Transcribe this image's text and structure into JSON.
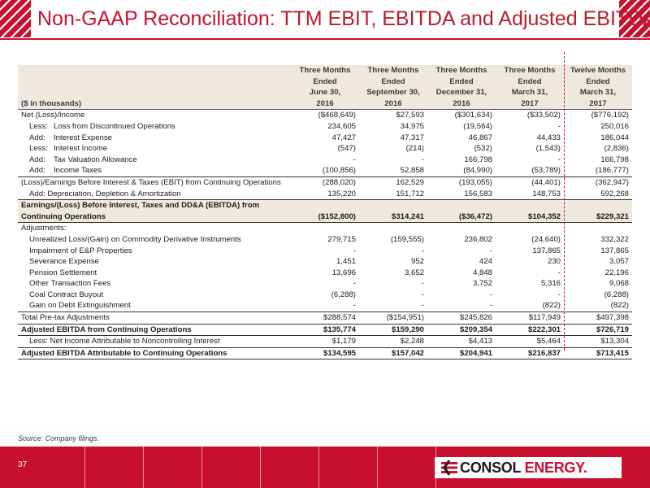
{
  "title": {
    "main": "Non-GAAP Reconciliation:",
    "sub": "TTM EBIT, EBITDA and Adjusted EBITDA"
  },
  "header": {
    "units_label": "($ in thousands)",
    "columns": [
      {
        "l1": "Three Months",
        "l2": "Ended",
        "l3": "June 30,",
        "year": "2016"
      },
      {
        "l1": "Three Months",
        "l2": "Ended",
        "l3": "September 30,",
        "year": "2016"
      },
      {
        "l1": "Three Months",
        "l2": "Ended",
        "l3": "December 31,",
        "year": "2016"
      },
      {
        "l1": "Three Months",
        "l2": "Ended",
        "l3": "March 31,",
        "year": "2017"
      },
      {
        "l1": "Twelve Months",
        "l2": "Ended",
        "l3": "March 31,",
        "year": "2017"
      }
    ]
  },
  "rows": [
    {
      "prefix": "",
      "label": "Net (Loss)/Income",
      "v": [
        "($468,649)",
        "$27,593",
        "($301,634)",
        "($33,502)",
        "($776,192)"
      ]
    },
    {
      "prefix": "Less:",
      "label": "Loss from Discontinued Operations",
      "v": [
        "234,605",
        "34,975",
        "(19,564)",
        "-",
        "250,016"
      ]
    },
    {
      "prefix": "Add:",
      "label": "Interest Expense",
      "v": [
        "47,427",
        "47,317",
        "46,867",
        "44,433",
        "186,044"
      ]
    },
    {
      "prefix": "Less:",
      "label": "Interest Income",
      "v": [
        "(547)",
        "(214)",
        "(532)",
        "(1,543)",
        "(2,836)"
      ]
    },
    {
      "prefix": "Add:",
      "label": "Tax Valuation Allowance",
      "v": [
        "-",
        "-",
        "166,798",
        "-",
        "166,798"
      ]
    },
    {
      "prefix": "Add:",
      "label": "Income Taxes",
      "v": [
        "(100,856)",
        "52,858",
        "(84,990)",
        "(53,789)",
        "(186,777)"
      ]
    },
    {
      "prefix": "",
      "label": "(Loss)/Earnings Before Interest & Taxes (EBIT) from Continuing Operations",
      "v": [
        "(288,020)",
        "162,529",
        "(193,055)",
        "(44,401)",
        "(362,947)"
      ]
    },
    {
      "prefix": "",
      "label": "Add: Depreciation, Depletion & Amortization",
      "v": [
        "135,220",
        "151,712",
        "156,583",
        "148,753",
        "592,268"
      ]
    }
  ],
  "ebitda": {
    "label1": "Earnings/(Loss) Before Interest, Taxes and DD&A (EBITDA) from",
    "label2": "Continuing Operations",
    "v": [
      "($152,800)",
      "$314,241",
      "($36,472)",
      "$104,352",
      "$229,321"
    ]
  },
  "adjustments_label": "Adjustments:",
  "adjustments": [
    {
      "label": "Unrealized Loss/(Gain) on Commodity Derivative Instruments",
      "v": [
        "279,715",
        "(159,555)",
        "236,802",
        "(24,640)",
        "332,322"
      ]
    },
    {
      "label": "Impairment of E&P Properties",
      "v": [
        "-",
        "-",
        "-",
        "137,865",
        "137,865"
      ]
    },
    {
      "label": "Severance Expense",
      "v": [
        "1,451",
        "952",
        "424",
        "230",
        "3,057"
      ]
    },
    {
      "label": "Pension Settlement",
      "v": [
        "13,696",
        "3,652",
        "4,848",
        "-",
        "22,196"
      ]
    },
    {
      "label": "Other Transaction Fees",
      "v": [
        "-",
        "-",
        "3,752",
        "5,316",
        "9,068"
      ]
    },
    {
      "label": "Coal Contract Buyout",
      "v": [
        "(6,288)",
        "-",
        "-",
        "-",
        "(6,288)"
      ]
    },
    {
      "label": "Gain on Debt Extinguishment",
      "v": [
        "-",
        "-",
        "-",
        "(822)",
        "(822)"
      ]
    }
  ],
  "total_adjustments": {
    "label": "Total Pre-tax Adjustments",
    "v": [
      "$288,574",
      "($154,951)",
      "$245,826",
      "$117,949",
      "$497,398"
    ]
  },
  "adjusted_ebitda": {
    "label": "Adjusted EBITDA from Continuing Operations",
    "v": [
      "$135,774",
      "$159,290",
      "$209,354",
      "$222,301",
      "$726,719"
    ]
  },
  "nci": {
    "label": "Less: Net Income Attributable to Noncontrolling Interest",
    "v": [
      "$1,179",
      "$2,248",
      "$4,413",
      "$5,464",
      "$13,304"
    ]
  },
  "adjusted_ebitda_cont": {
    "label": "Adjusted EBITDA Attributable to Continuing Operations",
    "v": [
      "$134,595",
      "$157,042",
      "$204,941",
      "$216,837",
      "$713,415"
    ]
  },
  "source": "Source: Company filings.",
  "page_number": "37",
  "logo": {
    "part1": "CONSOL",
    "part2": "ENERGY",
    "suffix": "."
  },
  "colors": {
    "accent": "#c8102e",
    "band": "#efe8df"
  }
}
